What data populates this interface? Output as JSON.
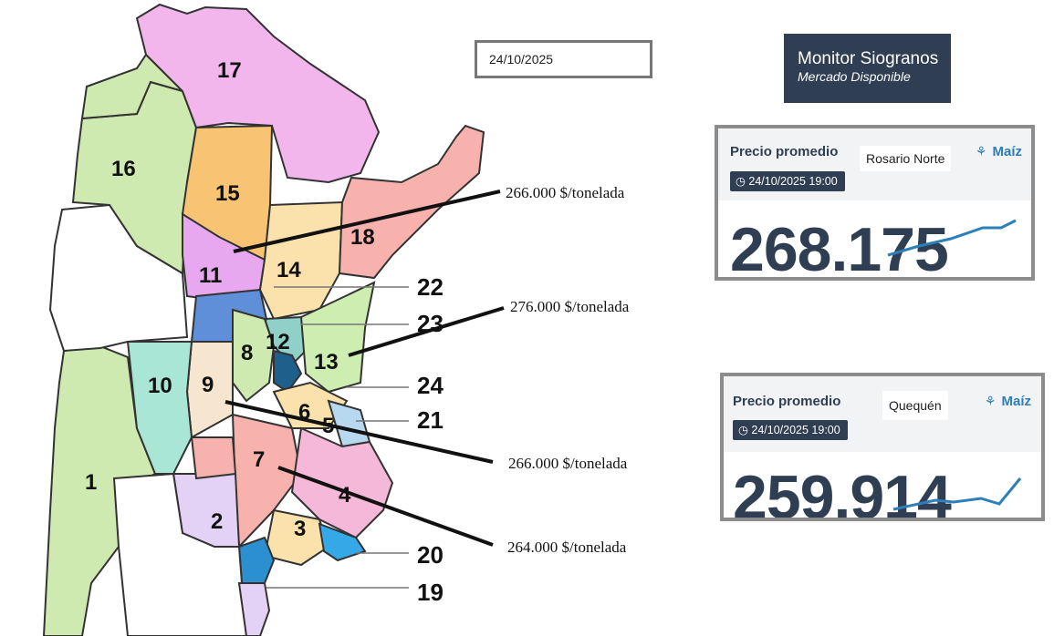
{
  "header": {
    "date": "24/10/2025",
    "monitor_title": "Monitor Siogranos",
    "monitor_subtitle": "Mercado Disponible"
  },
  "map": {
    "zone_labels": [
      "1",
      "2",
      "3",
      "4",
      "5",
      "6",
      "7",
      "8",
      "9",
      "10",
      "11",
      "12",
      "13",
      "14",
      "15",
      "16",
      "17",
      "18"
    ],
    "side_numbers": [
      "22",
      "23",
      "24",
      "21",
      "20",
      "19"
    ],
    "price_callouts": [
      {
        "text": "266.000 $/tonelada"
      },
      {
        "text": "276.000 $/tonelada"
      },
      {
        "text": "266.000 $/tonelada"
      },
      {
        "text": "264.000 $/tonelada"
      }
    ]
  },
  "cards": [
    {
      "label": "Precio promedio",
      "location": "Rosario Norte",
      "crop": "Maíz",
      "crop_icon": "wheat-icon",
      "timestamp": "24/10/2025  19:00",
      "price": "268.175",
      "spark_color": "#2c7fb8"
    },
    {
      "label": "Precio promedio",
      "location": "Quequén",
      "crop": "Maíz",
      "crop_icon": "wheat-icon",
      "timestamp": "24/10/2025  19:00",
      "price": "259.914",
      "spark_color": "#2c7fb8"
    }
  ]
}
